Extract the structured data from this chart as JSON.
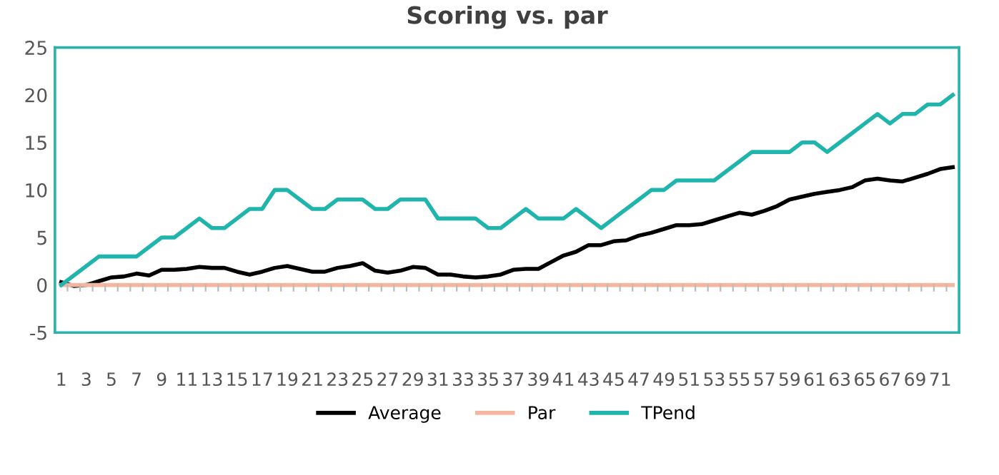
{
  "chart_data": {
    "type": "line",
    "title": "Scoring vs. par",
    "categories": [
      "1",
      null,
      "3",
      null,
      "5",
      null,
      "7",
      null,
      "9",
      null,
      "11",
      null,
      "13",
      null,
      "15",
      null,
      "17",
      null,
      "19",
      null,
      "21",
      null,
      "23",
      null,
      "25",
      null,
      "27",
      null,
      "29",
      null,
      "31",
      null,
      "33",
      null,
      "35",
      null,
      "37",
      null,
      "39",
      null,
      "41",
      null,
      "43",
      null,
      "45",
      null,
      "47",
      null,
      "49",
      null,
      "51",
      null,
      "53",
      null,
      "55",
      null,
      "57",
      null,
      "59",
      null,
      "61",
      null,
      "63",
      null,
      "65",
      null,
      "67",
      null,
      "69",
      null,
      "71",
      null
    ],
    "series": [
      {
        "name": "Average",
        "color": "#000000",
        "values": [
          0.3,
          -0.1,
          0,
          0.4,
          0.8,
          0.9,
          1.2,
          1.0,
          1.6,
          1.6,
          1.7,
          1.9,
          1.8,
          1.8,
          1.4,
          1.1,
          1.4,
          1.8,
          2.0,
          1.7,
          1.4,
          1.4,
          1.8,
          2.0,
          2.3,
          1.5,
          1.3,
          1.5,
          1.9,
          1.8,
          1.1,
          1.1,
          0.9,
          0.8,
          0.9,
          1.1,
          1.6,
          1.7,
          1.7,
          2.4,
          3.1,
          3.5,
          4.2,
          4.2,
          4.6,
          4.7,
          5.2,
          5.5,
          5.9,
          6.3,
          6.3,
          6.4,
          6.8,
          7.2,
          7.6,
          7.4,
          7.8,
          8.3,
          9.0,
          9.3,
          9.6,
          9.8,
          10.0,
          10.3,
          11.0,
          11.2,
          11.0,
          10.9,
          11.3,
          11.7,
          12.2,
          12.4
        ]
      },
      {
        "name": "Par",
        "color": "#f4b6a0",
        "values": [
          0,
          0,
          0,
          0,
          0,
          0,
          0,
          0,
          0,
          0,
          0,
          0,
          0,
          0,
          0,
          0,
          0,
          0,
          0,
          0,
          0,
          0,
          0,
          0,
          0,
          0,
          0,
          0,
          0,
          0,
          0,
          0,
          0,
          0,
          0,
          0,
          0,
          0,
          0,
          0,
          0,
          0,
          0,
          0,
          0,
          0,
          0,
          0,
          0,
          0,
          0,
          0,
          0,
          0,
          0,
          0,
          0,
          0,
          0,
          0,
          0,
          0,
          0,
          0,
          0,
          0,
          0,
          0,
          0,
          0,
          0,
          0
        ]
      },
      {
        "name": "TPend",
        "color": "#1fb5ad",
        "values": [
          0,
          1,
          2,
          3,
          3,
          3,
          3,
          4,
          5,
          5,
          6,
          7,
          6,
          6,
          7,
          8,
          8,
          10,
          10,
          9,
          8,
          8,
          9,
          9,
          9,
          8,
          8,
          9,
          9,
          9,
          7,
          7,
          7,
          7,
          6,
          6,
          7,
          8,
          7,
          7,
          7,
          8,
          7,
          6,
          7,
          8,
          9,
          10,
          10,
          11,
          11,
          11,
          11,
          12,
          13,
          14,
          14,
          14,
          14,
          15,
          15,
          14,
          15,
          16,
          17,
          18,
          17,
          18,
          18,
          19,
          19,
          20
        ]
      }
    ],
    "ylim": [
      -5,
      25
    ],
    "yticks": [
      -5,
      0,
      5,
      10,
      15,
      20,
      25
    ],
    "grid": false,
    "legend": "bottom",
    "marker": "none",
    "line_style": "solid"
  }
}
